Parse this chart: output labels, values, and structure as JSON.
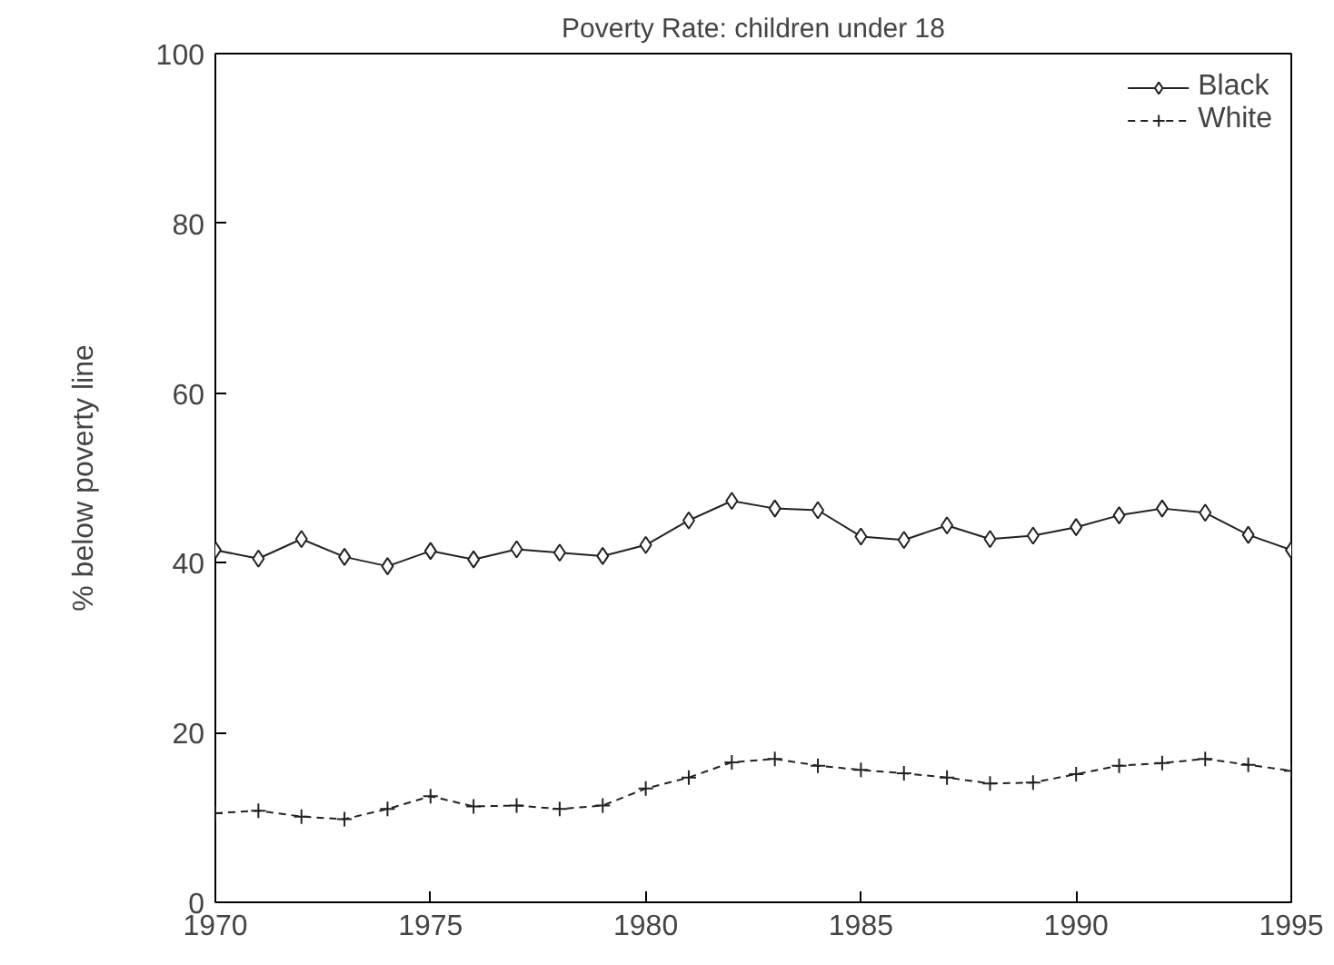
{
  "chart_data": {
    "type": "line",
    "title": "Poverty Rate: children under 18",
    "ylabel": "% below poverty line",
    "x": [
      1970,
      1971,
      1972,
      1973,
      1974,
      1975,
      1976,
      1977,
      1978,
      1979,
      1980,
      1981,
      1982,
      1983,
      1984,
      1985,
      1986,
      1987,
      1988,
      1989,
      1990,
      1991,
      1992,
      1993,
      1994,
      1995
    ],
    "series": [
      {
        "name": "Black",
        "color": "#222222",
        "marker": "diamond",
        "line_style": "solid",
        "values": [
          41.5,
          40.5,
          42.8,
          40.7,
          39.6,
          41.4,
          40.4,
          41.6,
          41.2,
          40.8,
          42.1,
          45.0,
          47.3,
          46.4,
          46.2,
          43.1,
          42.7,
          44.4,
          42.8,
          43.2,
          44.2,
          45.6,
          46.4,
          45.9,
          43.3,
          41.5
        ]
      },
      {
        "name": "White",
        "color": "#222222",
        "marker": "cross",
        "line_style": "dashed",
        "values": [
          10.5,
          10.8,
          10.1,
          9.8,
          11.0,
          12.5,
          11.3,
          11.4,
          11.0,
          11.4,
          13.4,
          14.7,
          16.5,
          16.9,
          16.1,
          15.6,
          15.2,
          14.7,
          14.0,
          14.1,
          15.1,
          16.1,
          16.4,
          16.9,
          16.2,
          15.5
        ]
      }
    ],
    "xlim": [
      1970,
      1995
    ],
    "ylim": [
      0,
      100
    ],
    "xticks": [
      1970,
      1975,
      1980,
      1985,
      1990,
      1995
    ],
    "yticks": [
      0,
      20,
      40,
      60,
      80,
      100
    ],
    "grid": false,
    "legend": "top right"
  }
}
